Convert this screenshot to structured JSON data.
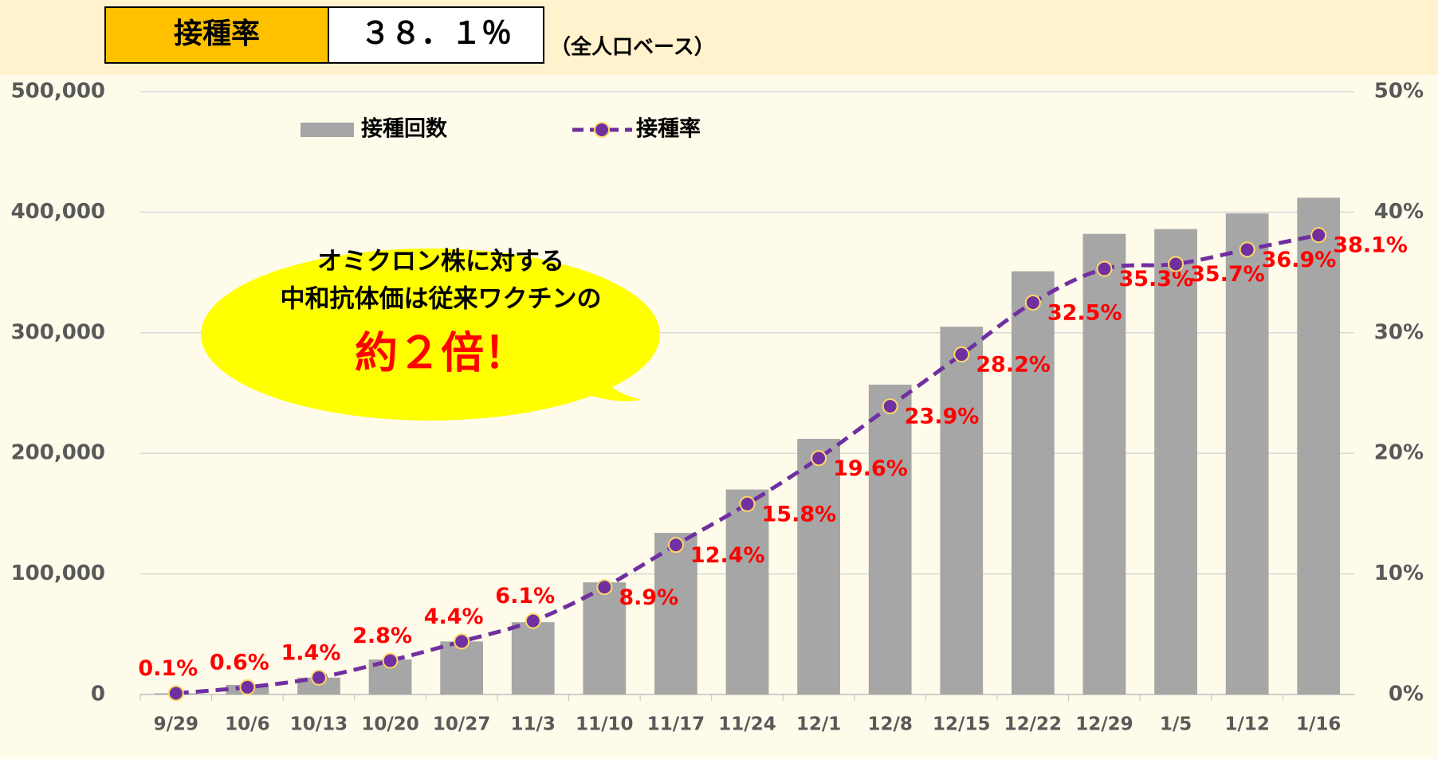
{
  "header": {
    "label": "接種率",
    "value": "３８．１％",
    "note": "（全人口ベース）"
  },
  "callout": {
    "lines": [
      "オミクロン株に対する",
      "中和抗体価は従来ワクチンの",
      "約２倍！"
    ]
  },
  "chart_data": {
    "type": "combo",
    "categories": [
      "9/29",
      "10/6",
      "10/13",
      "10/20",
      "10/27",
      "11/3",
      "11/10",
      "11/17",
      "11/24",
      "12/1",
      "12/8",
      "12/15",
      "12/22",
      "12/29",
      "1/5",
      "1/12",
      "1/16"
    ],
    "series": [
      {
        "name": "接種回数",
        "type": "bar",
        "color": "#a6a6a6",
        "values": [
          1000,
          8000,
          14000,
          29000,
          44000,
          60000,
          93000,
          134000,
          170000,
          212000,
          257000,
          305000,
          351000,
          382000,
          386000,
          399000,
          412000
        ]
      },
      {
        "name": "接種率",
        "type": "line",
        "axis": "y2",
        "color": "#7030a0",
        "values": [
          0.1,
          0.6,
          1.4,
          2.8,
          4.4,
          6.1,
          8.9,
          12.4,
          15.8,
          19.6,
          23.9,
          28.2,
          32.5,
          35.3,
          35.7,
          36.9,
          38.1
        ],
        "value_labels": [
          "0.1%",
          "0.6%",
          "1.4%",
          "2.8%",
          "4.4%",
          "6.1%",
          "8.9%",
          "12.4%",
          "15.8%",
          "19.6%",
          "23.9%",
          "28.2%",
          "32.5%",
          "35.3%",
          "35.7%",
          "36.9%",
          "38.1%"
        ]
      }
    ],
    "ylim": [
      0,
      500000
    ],
    "yticks": [
      0,
      {
        "value": 100000,
        "label": "100,000"
      },
      {
        "value": 200000,
        "label": "200,000"
      },
      {
        "value": 300000,
        "label": "300,000"
      },
      {
        "value": 400000,
        "label": "400,000"
      },
      {
        "value": 500000,
        "label": "500,000"
      }
    ],
    "y2lim": [
      0,
      50
    ],
    "y2ticks": [
      {
        "value": 0,
        "label": "0%"
      },
      {
        "value": 10,
        "label": "10%"
      },
      {
        "value": 20,
        "label": "20%"
      },
      {
        "value": 30,
        "label": "30%"
      },
      {
        "value": 40,
        "label": "40%"
      },
      {
        "value": 50,
        "label": "50%"
      }
    ],
    "grid": true
  }
}
